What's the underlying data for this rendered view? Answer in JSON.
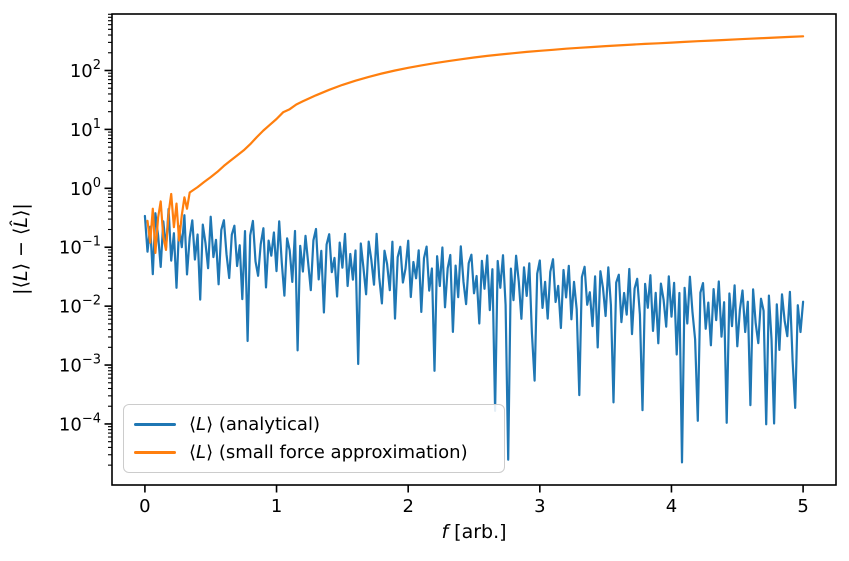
{
  "chart_data": {
    "type": "line",
    "title": "",
    "xlabel": {
      "var": "f",
      "rest": " [arb.]"
    },
    "ylabel": {
      "p0": "|⟨",
      "v0": "L",
      "p1": "⟩ − ⟨",
      "v1": "L̂",
      "p2": "⟩|"
    },
    "yscale": "log",
    "grid": false,
    "xlim": [
      -0.25,
      5.25
    ],
    "ylim": [
      9.2e-06,
      910
    ],
    "x_ticks": [
      0,
      1,
      2,
      3,
      4,
      5
    ],
    "x_tick_labels": [
      "0",
      "1",
      "2",
      "3",
      "4",
      "5"
    ],
    "y_tick_base": "10",
    "y_tick_exponents": [
      2,
      1,
      0,
      -1,
      -2,
      -3,
      -4
    ],
    "legend": {
      "position": "lower left"
    },
    "colors": {
      "axis": "#000000",
      "legend_border": "#cccccc",
      "background": "#ffffff"
    },
    "series": [
      {
        "name": "⟨L⟩ (analytical)",
        "label": {
          "open": "⟨",
          "var": "L",
          "close": "⟩",
          "rest": " (analytical)"
        },
        "color": "#1f77b4",
        "representation": "log10_trend_plus_offsets",
        "f_start": 0.0,
        "f_step": 0.02,
        "log10_trend_intercept": -0.82,
        "log10_trend_slope": -0.285,
        "log10_offsets": [
          0.35,
          -0.25,
          0.18,
          -0.62,
          0.42,
          0.05,
          -0.48,
          0.3,
          -0.15,
          0.52,
          -0.35,
          0.12,
          -0.8,
          0.25,
          -0.1,
          0.45,
          -0.55,
          0.08,
          0.38,
          -0.28,
          0.15,
          -0.95,
          0.33,
          0.02,
          -0.4,
          0.48,
          -0.2,
          0.1,
          -0.65,
          0.28,
          0.45,
          -0.12,
          -0.52,
          0.22,
          0.38,
          -0.3,
          0.06,
          -0.85,
          0.31,
          -1.55,
          0.25,
          0.5,
          -0.18,
          -0.42,
          0.12,
          0.4,
          -0.6,
          0.2,
          -0.05,
          0.35,
          -0.3,
          0.55,
          -0.15,
          -0.7,
          0.28,
          0.08,
          -0.45,
          0.42,
          -1.6,
          0.18,
          -0.25,
          0.36,
          -0.08,
          -0.55,
          0.3,
          0.5,
          -0.35,
          0.14,
          -0.9,
          0.26,
          0.44,
          -0.2,
          0.05,
          -0.6,
          0.32,
          -0.1,
          0.48,
          -0.4,
          0.15,
          -0.28,
          0.22,
          -1.7,
          0.35,
          -0.05,
          -0.5,
          0.4,
          0.1,
          -0.32,
          0.55,
          -0.18,
          -0.62,
          0.28,
          0.06,
          -0.38,
          0.45,
          -0.85,
          0.2,
          0.38,
          -0.22,
          0.02,
          0.5,
          -0.45,
          0.15,
          -0.12,
          0.36,
          -0.68,
          0.24,
          0.44,
          -0.3,
          0.08,
          -1.65,
          0.3,
          -0.2,
          0.46,
          -0.55,
          0.12,
          0.35,
          -0.95,
          0.18,
          -0.35,
          0.52,
          -0.08,
          -0.45,
          0.25,
          0.4,
          -0.25,
          0.05,
          -0.75,
          0.32,
          -0.15,
          0.42,
          -0.5,
          0.2,
          -2.2,
          0.35,
          -0.1,
          0.46,
          -0.38,
          -3.0,
          0.25,
          -0.28,
          0.48,
          0.04,
          -0.58,
          0.3,
          -0.18,
          0.38,
          -0.8,
          -1.6,
          0.22,
          0.45,
          -0.35,
          0.1,
          -0.52,
          0.28,
          0.5,
          -0.22,
          0.06,
          -0.65,
          0.34,
          -0.12,
          0.42,
          -0.48,
          0.16,
          -0.3,
          -1.75,
          0.26,
          0.44,
          -0.2,
          0.02,
          -0.55,
          0.3,
          -0.9,
          0.4,
          0.12,
          -0.35,
          0.48,
          -0.15,
          -1.8,
          0.24,
          0.38,
          -0.42,
          0.08,
          -0.28,
          0.5,
          -0.6,
          0.18,
          0.35,
          -0.25,
          -1.87,
          0.28,
          -0.12,
          0.44,
          -0.5,
          0.15,
          -0.7,
          0.32,
          0.05,
          -0.4,
          0.46,
          -0.22,
          0.36,
          -0.85,
          0.2,
          -2.67,
          0.3,
          -0.3,
          0.5,
          -0.1,
          -0.55,
          -1.93,
          0.25,
          0.42,
          -0.35,
          0.1,
          -0.62,
          0.34,
          -0.18,
          0.48,
          -0.45,
          0.14,
          -1.9,
          0.3,
          -0.25,
          0.45,
          -0.58,
          0.05,
          0.38,
          -0.32,
          0.2,
          -1.55,
          0.42,
          -0.15,
          -0.48,
          0.28,
          0.08,
          -1.84,
          0.35,
          -0.38,
          -1.81,
          0.22,
          -0.55,
          0.4,
          -0.05,
          -0.3,
          0.46,
          -0.7,
          -1.5,
          0.25,
          -0.2,
          0.32
        ]
      },
      {
        "name": "⟨L⟩ (small force approximation)",
        "label": {
          "open": "⟨",
          "var": "L",
          "close": "⟩",
          "rest": " (small force approximation)"
        },
        "color": "#ff7f0e",
        "representation": "points",
        "points": [
          [
            0.02,
            0.28
          ],
          [
            0.04,
            0.12
          ],
          [
            0.06,
            0.45
          ],
          [
            0.08,
            0.08
          ],
          [
            0.1,
            0.32
          ],
          [
            0.12,
            0.6
          ],
          [
            0.14,
            0.15
          ],
          [
            0.16,
            0.09
          ],
          [
            0.18,
            0.38
          ],
          [
            0.2,
            0.8
          ],
          [
            0.22,
            0.22
          ],
          [
            0.24,
            0.55
          ],
          [
            0.26,
            0.13
          ],
          [
            0.28,
            0.35
          ],
          [
            0.3,
            0.7
          ],
          [
            0.32,
            0.45
          ],
          [
            0.34,
            0.85
          ],
          [
            0.4,
            1.05
          ],
          [
            0.45,
            1.28
          ],
          [
            0.5,
            1.55
          ],
          [
            0.55,
            1.9
          ],
          [
            0.6,
            2.4
          ],
          [
            0.65,
            2.95
          ],
          [
            0.7,
            3.6
          ],
          [
            0.75,
            4.4
          ],
          [
            0.8,
            5.6
          ],
          [
            0.85,
            7.4
          ],
          [
            0.9,
            9.6
          ],
          [
            0.95,
            12.0
          ],
          [
            1.0,
            15.0
          ],
          [
            1.05,
            19.5
          ],
          [
            1.1,
            22.0
          ],
          [
            1.15,
            26.5
          ],
          [
            1.2,
            30.0
          ],
          [
            1.3,
            38.0
          ],
          [
            1.4,
            47.0
          ],
          [
            1.5,
            57.0
          ],
          [
            1.6,
            67.0
          ],
          [
            1.7,
            78.0
          ],
          [
            1.8,
            89.0
          ],
          [
            1.9,
            100.0
          ],
          [
            2.0,
            111.0
          ],
          [
            2.1,
            122.0
          ],
          [
            2.2,
            133.0
          ],
          [
            2.3,
            144.0
          ],
          [
            2.4,
            155.0
          ],
          [
            2.5,
            166.0
          ],
          [
            2.6,
            177.0
          ],
          [
            2.7,
            187.0
          ],
          [
            2.8,
            197.0
          ],
          [
            2.9,
            207.0
          ],
          [
            3.0,
            216.0
          ],
          [
            3.1,
            225.0
          ],
          [
            3.2,
            234.0
          ],
          [
            3.3,
            243.0
          ],
          [
            3.4,
            251.0
          ],
          [
            3.5,
            259.0
          ],
          [
            3.6,
            267.0
          ],
          [
            3.7,
            275.0
          ],
          [
            3.8,
            283.0
          ],
          [
            3.9,
            290.0
          ],
          [
            4.0,
            298.0
          ],
          [
            4.1,
            306.0
          ],
          [
            4.2,
            314.0
          ],
          [
            4.3,
            322.0
          ],
          [
            4.4,
            330.0
          ],
          [
            4.5,
            338.0
          ],
          [
            4.6,
            347.0
          ],
          [
            4.7,
            355.0
          ],
          [
            4.8,
            363.0
          ],
          [
            4.9,
            372.0
          ],
          [
            5.0,
            380.0
          ]
        ]
      }
    ]
  }
}
